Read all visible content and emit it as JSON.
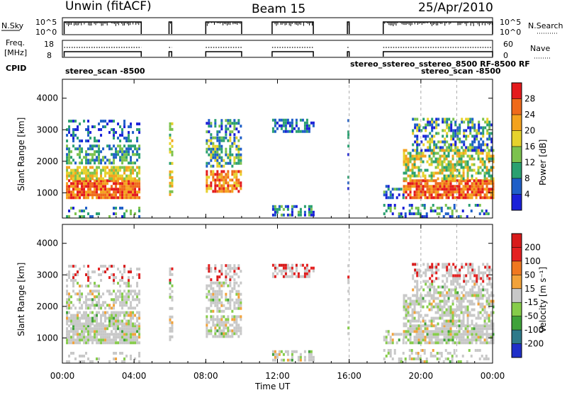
{
  "header": {
    "left": "Unwin (fitACF)",
    "center": "Beam 15",
    "right": "25/Apr/2010"
  },
  "top_panels": {
    "nsky_label": "N.Sky",
    "nsky_ticks": [
      "10^5",
      "10^0"
    ],
    "nsearch_label": "N.Search",
    "nsearch_ticks": [
      "10^5",
      "10^0"
    ],
    "freq_label_1": "Freq.",
    "freq_label_2": "[MHz]",
    "freq_ticks": [
      "18",
      "8"
    ],
    "nave_label": "Nave",
    "nave_ticks": [
      "60",
      "0"
    ],
    "cpid_label": "CPID",
    "cpid_annotations": [
      {
        "text": "stereo_scan -8500"
      },
      {
        "text": "stereo_sstereo_sstereo_8500 RF-8500 RF"
      },
      {
        "text": "stereo_scan -8500"
      }
    ]
  },
  "chart_data": [
    {
      "type": "heatmap",
      "name": "power-panel",
      "title": "",
      "xlabel": "",
      "ylabel": "Slant Range [km]",
      "y_ticks": [
        1000,
        2000,
        3000,
        4000
      ],
      "ylim": [
        200,
        4600
      ],
      "colorbar": {
        "label": "Power [dB]",
        "ticks": [
          4,
          8,
          12,
          16,
          20,
          24,
          28
        ],
        "colors": [
          "#1a20d8",
          "#1f5fc8",
          "#2aa070",
          "#7cc24e",
          "#e6d22c",
          "#f4a21e",
          "#ef6a1a",
          "#e41a1c"
        ]
      }
    },
    {
      "type": "heatmap",
      "name": "velocity-panel",
      "title": "",
      "xlabel": "Time UT",
      "ylabel": "Slant Range [km]",
      "y_ticks": [
        1000,
        2000,
        3000,
        4000
      ],
      "ylim": [
        200,
        4600
      ],
      "x_ticks": [
        "00:00",
        "04:00",
        "08:00",
        "12:00",
        "16:00",
        "20:00",
        "00:00"
      ],
      "colorbar": {
        "label": "Velocity [m s⁻¹]",
        "ticks": [
          "200",
          "100",
          "50",
          "15",
          "-15",
          "-50",
          "-100",
          "-200"
        ],
        "colors": [
          "#2030c8",
          "#2e7a8a",
          "#3fa23a",
          "#86cc4a",
          "#c8c8c8",
          "#f2a23a",
          "#f07820",
          "#e42020",
          "#d81a1a"
        ]
      }
    }
  ],
  "x_axis": {
    "label": "Time UT",
    "ticks": [
      "00:00",
      "04:00",
      "08:00",
      "12:00",
      "16:00",
      "20:00",
      "00:00"
    ]
  },
  "colors": {
    "background": "#ffffff",
    "power_high": "#e41a1c",
    "power_low": "#1a20d8",
    "ground_scatter": "#c8c8c8"
  }
}
